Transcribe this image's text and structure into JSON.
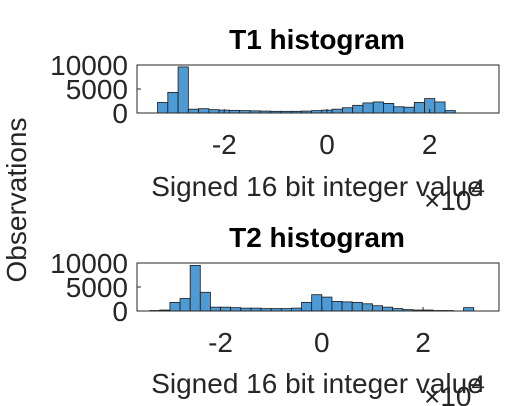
{
  "figure": {
    "ylabel": "Observations",
    "bar_color": "#4d9ad4",
    "edge_color": "#1a1a1a"
  },
  "chart_data": [
    {
      "type": "bar",
      "title": "T1 histogram",
      "xlabel": "Signed 16 bit integer value",
      "ylabel": "Observations",
      "exponent": {
        "base": "×10",
        "power": "4"
      },
      "xlim": [
        -3.7,
        3.35
      ],
      "ylim": [
        0,
        10000
      ],
      "xticks": [
        -2,
        0,
        2
      ],
      "yticks": [
        0,
        5000,
        10000
      ],
      "bin_start": -3.3,
      "bin_width": 0.2,
      "values": [
        2200,
        4300,
        9600,
        800,
        900,
        700,
        600,
        550,
        500,
        450,
        400,
        350,
        350,
        350,
        400,
        500,
        600,
        800,
        1100,
        1600,
        2100,
        2300,
        2000,
        1300,
        1200,
        2200,
        3000,
        2300,
        500,
        0
      ]
    },
    {
      "type": "bar",
      "title": "T2 histogram",
      "xlabel": "Signed 16 bit integer value",
      "ylabel": "Observations",
      "exponent": {
        "base": "×10",
        "power": "4"
      },
      "xlim": [
        -3.65,
        3.5
      ],
      "ylim": [
        0,
        10000
      ],
      "xticks": [
        -2,
        0,
        2
      ],
      "yticks": [
        0,
        5000,
        10000
      ],
      "bin_start": -3.4,
      "bin_width": 0.2,
      "values": [
        100,
        200,
        1800,
        2600,
        9500,
        3900,
        800,
        800,
        700,
        600,
        600,
        500,
        500,
        500,
        600,
        1800,
        3400,
        2900,
        2000,
        1900,
        1800,
        1500,
        1100,
        800,
        500,
        300,
        200,
        200,
        100,
        100,
        0,
        700
      ]
    }
  ]
}
